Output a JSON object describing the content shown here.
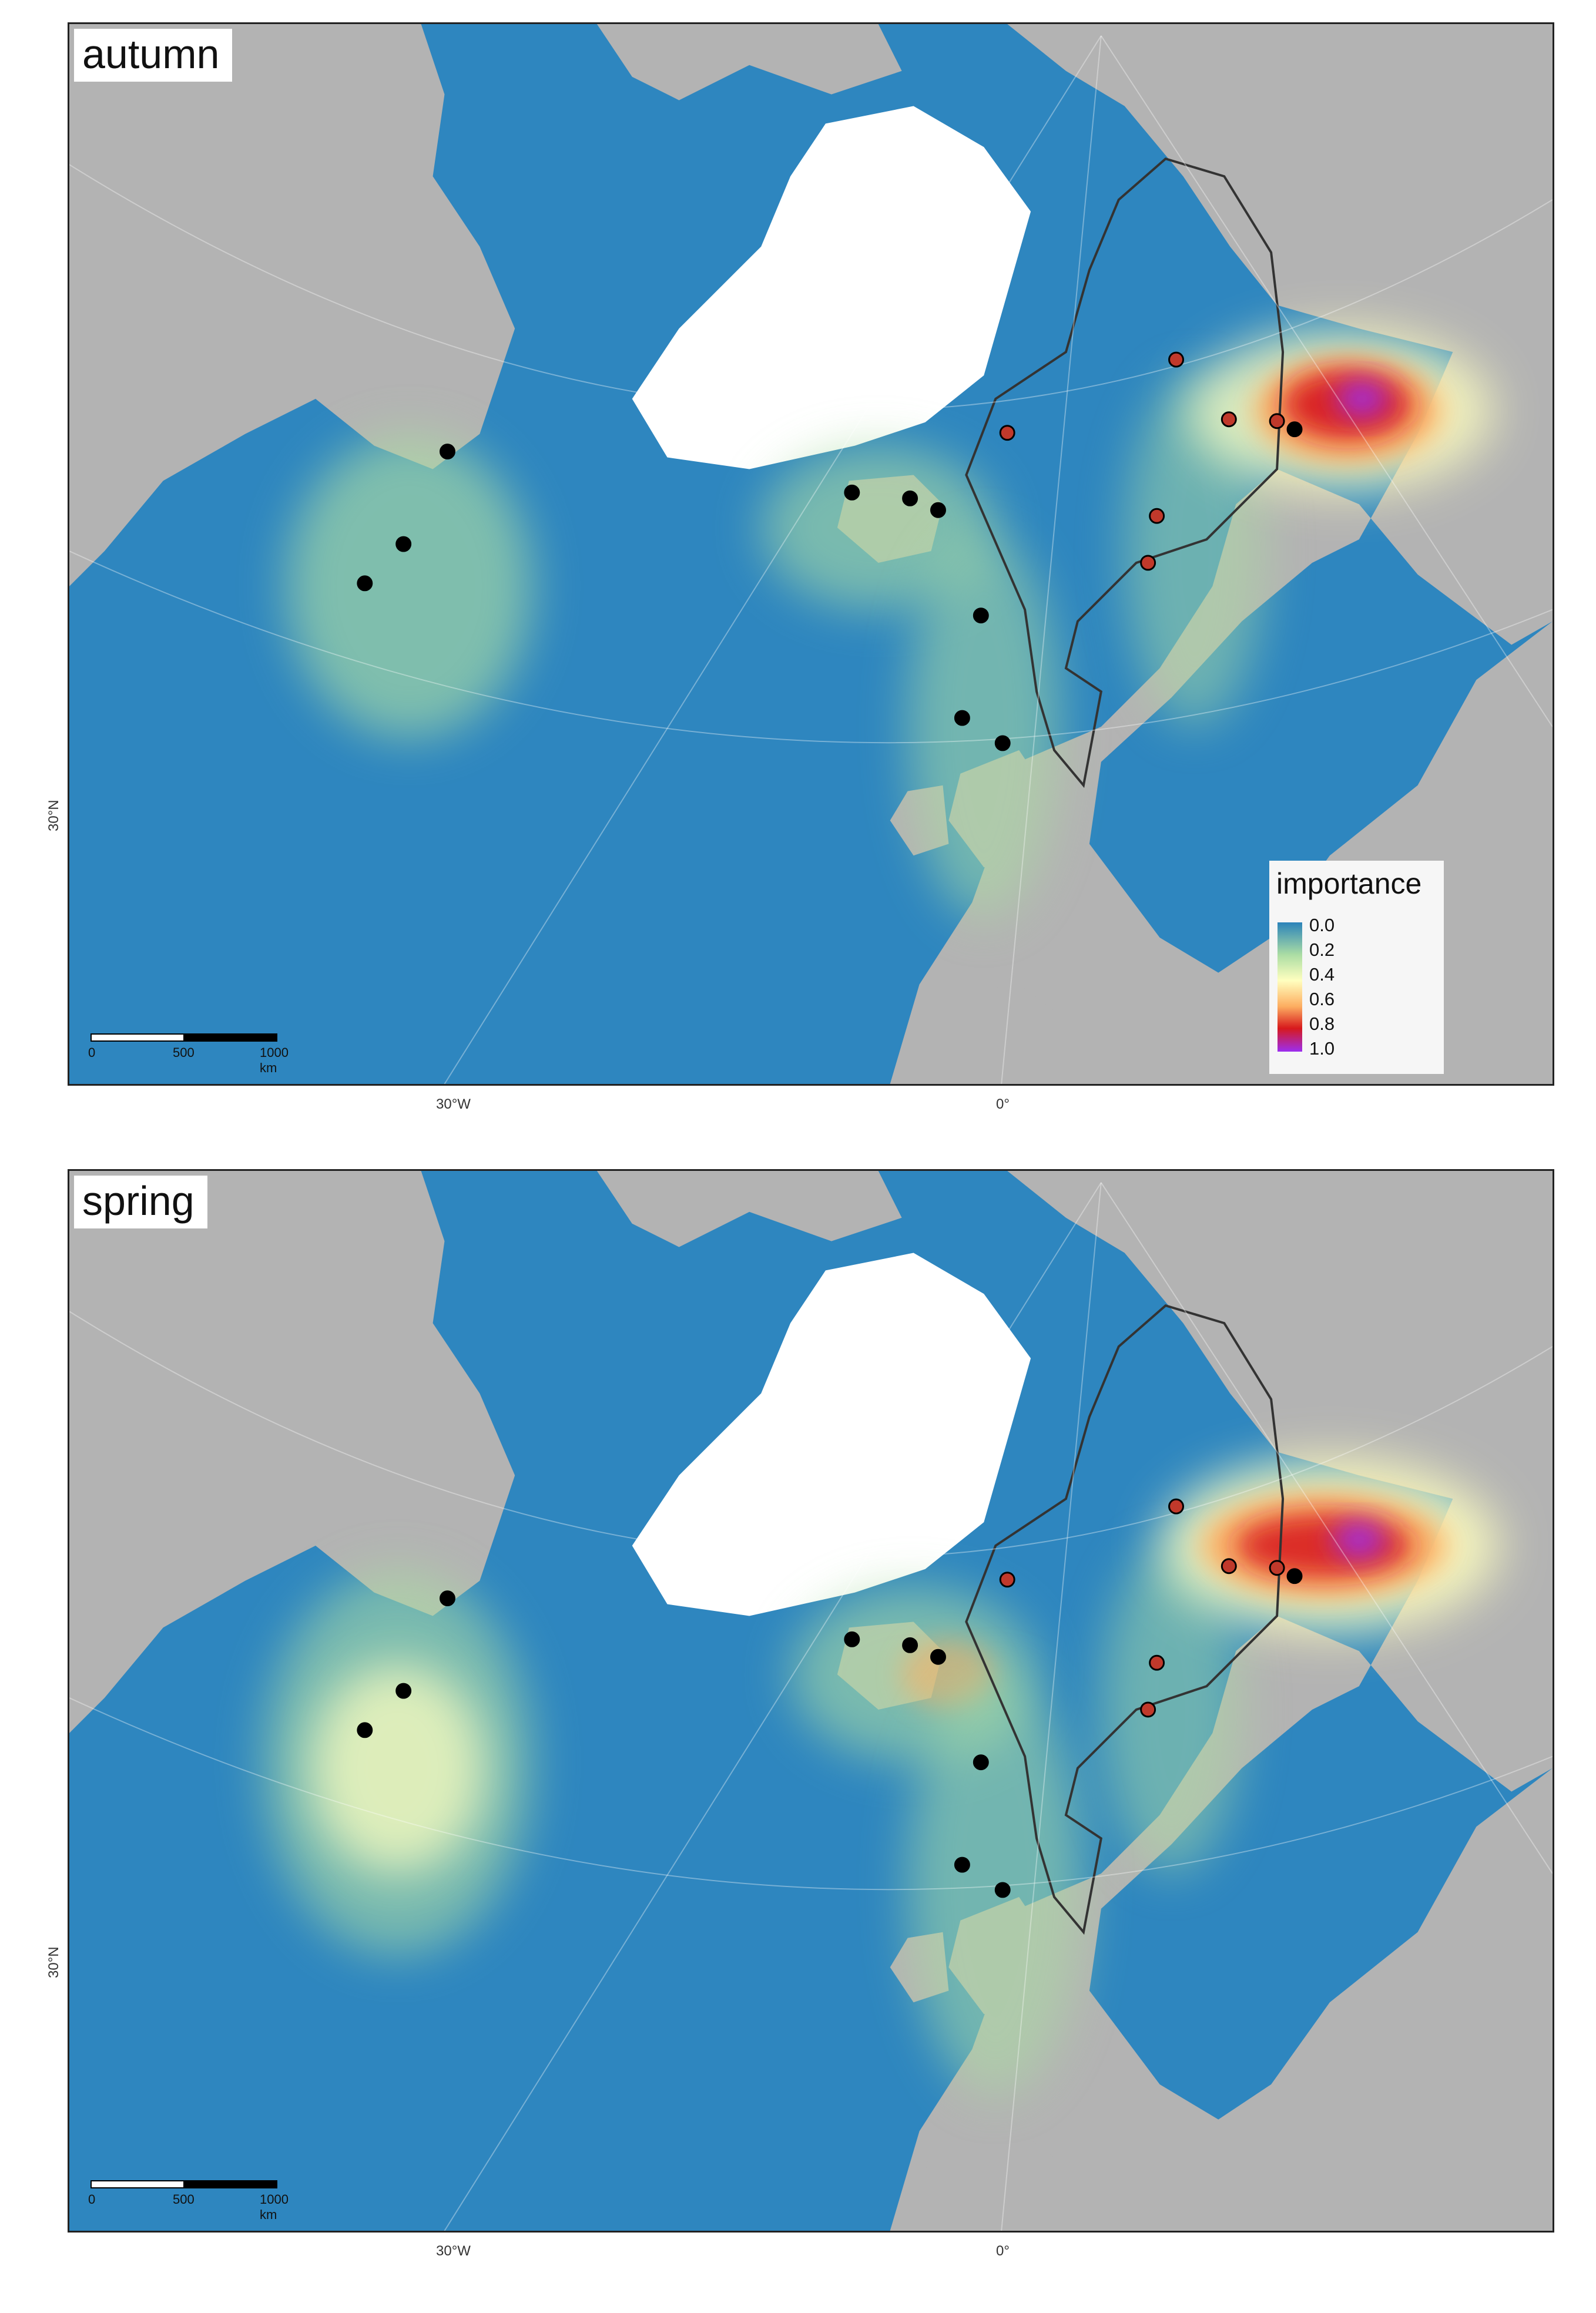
{
  "panels": [
    {
      "season": "autumn"
    },
    {
      "season": "spring"
    }
  ],
  "axes": {
    "lat_label": "30°N",
    "lon_labels": [
      "30°W",
      "0°"
    ]
  },
  "scalebar": {
    "ticks": [
      "0",
      "500",
      "1000 km"
    ]
  },
  "legend": {
    "title": "importance",
    "values": [
      "0.0",
      "0.2",
      "0.4",
      "0.6",
      "0.8",
      "1.0"
    ],
    "colors": [
      "#2b83ba",
      "#abdda4",
      "#ffffbf",
      "#fdae61",
      "#d7191c",
      "#9c2ef0"
    ]
  },
  "colors": {
    "ocean": "#2e86bf",
    "land": "#b3b3b3",
    "ice": "#ffffff",
    "colony_black": "#000000",
    "colony_red": "#c0392b"
  }
}
